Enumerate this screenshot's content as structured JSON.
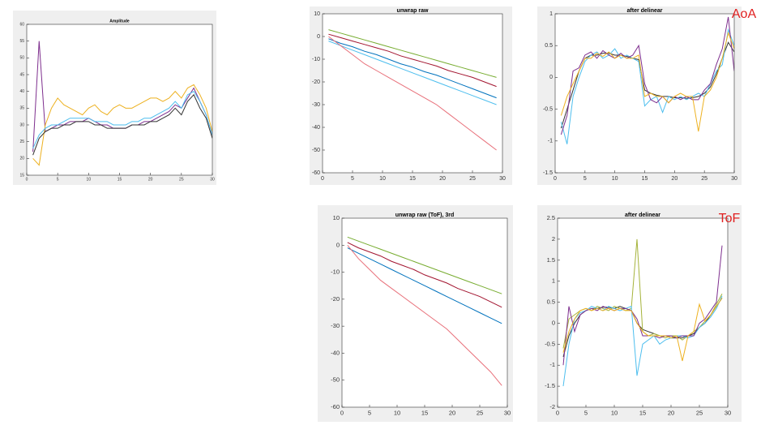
{
  "chart_data": [
    {
      "type": "line",
      "title": "Amplitude",
      "x": [
        1,
        2,
        3,
        4,
        5,
        6,
        7,
        8,
        9,
        10,
        11,
        12,
        13,
        14,
        15,
        16,
        17,
        18,
        19,
        20,
        21,
        22,
        23,
        24,
        25,
        26,
        27,
        28,
        29,
        30
      ],
      "series": [
        {
          "color": "#7e2f8e",
          "values": [
            22,
            55,
            28,
            29,
            30,
            30,
            31,
            31,
            31,
            32,
            31,
            30,
            30,
            29,
            29,
            29,
            30,
            30,
            31,
            31,
            32,
            33,
            34,
            36,
            35,
            38,
            41,
            37,
            33,
            27
          ]
        },
        {
          "color": "#edb120",
          "values": [
            20,
            18,
            30,
            35,
            38,
            36,
            35,
            34,
            33,
            35,
            36,
            34,
            33,
            35,
            36,
            35,
            35,
            36,
            37,
            38,
            38,
            37,
            38,
            40,
            38,
            41,
            42,
            39,
            35,
            28
          ]
        },
        {
          "color": "#333333",
          "values": [
            21,
            26,
            28,
            29,
            29,
            30,
            30,
            31,
            31,
            31,
            30,
            30,
            29,
            29,
            29,
            29,
            30,
            30,
            30,
            31,
            31,
            32,
            33,
            35,
            33,
            37,
            39,
            35,
            32,
            26
          ]
        },
        {
          "color": "#4dbeee",
          "values": [
            23,
            27,
            29,
            30,
            30,
            31,
            32,
            32,
            32,
            32,
            31,
            31,
            31,
            30,
            30,
            30,
            31,
            31,
            32,
            32,
            33,
            34,
            35,
            37,
            35,
            39,
            40,
            37,
            33,
            27
          ]
        }
      ],
      "xlim": [
        0,
        30
      ],
      "xticks": [
        0,
        5,
        10,
        15,
        20,
        25,
        30
      ],
      "ylim": [
        15,
        60
      ],
      "yticks": [
        15,
        20,
        25,
        30,
        35,
        40,
        45,
        50,
        55,
        60
      ]
    },
    {
      "type": "line",
      "title": "unwrap raw",
      "x": [
        1,
        3,
        5,
        7,
        9,
        11,
        13,
        15,
        17,
        19,
        21,
        23,
        25,
        27,
        29
      ],
      "series": [
        {
          "color": "#77ac30",
          "values": [
            3,
            1.5,
            0,
            -1.5,
            -3,
            -4.5,
            -6,
            -7.5,
            -9,
            -10.5,
            -12,
            -13.5,
            -15,
            -16.5,
            -18
          ]
        },
        {
          "color": "#a2142f",
          "values": [
            1,
            -0.5,
            -2,
            -3.5,
            -5,
            -6.5,
            -8.5,
            -10,
            -11.5,
            -13,
            -15,
            -16.5,
            -18,
            -20,
            -22
          ]
        },
        {
          "color": "#0072bd",
          "values": [
            -1,
            -3,
            -4.5,
            -6.5,
            -8,
            -10,
            -12,
            -13.5,
            -15.5,
            -17,
            -19,
            -21,
            -23,
            -25,
            -27
          ]
        },
        {
          "color": "#4dbeee",
          "values": [
            -2,
            -4,
            -6,
            -8,
            -10,
            -12,
            -14,
            -16,
            -18,
            -20,
            -22,
            -24,
            -26,
            -28,
            -30
          ]
        },
        {
          "color": "#e8707a",
          "values": [
            0,
            -4,
            -8,
            -12,
            -15,
            -18,
            -21,
            -24,
            -27,
            -30,
            -34,
            -38,
            -42,
            -46,
            -50
          ]
        }
      ],
      "xlim": [
        0,
        30
      ],
      "xticks": [
        0,
        5,
        10,
        15,
        20,
        25,
        30
      ],
      "ylim": [
        -60,
        10
      ],
      "yticks": [
        -60,
        -50,
        -40,
        -30,
        -20,
        -10,
        0,
        10
      ]
    },
    {
      "type": "line",
      "title": "after delinear",
      "annotation": "AoA",
      "x": [
        1,
        2,
        3,
        4,
        5,
        6,
        7,
        8,
        9,
        10,
        11,
        12,
        13,
        14,
        15,
        16,
        17,
        18,
        19,
        20,
        21,
        22,
        23,
        24,
        25,
        26,
        27,
        28,
        29,
        30
      ],
      "series": [
        {
          "color": "#333333",
          "values": [
            -0.8,
            -0.5,
            -0.2,
            0.1,
            0.3,
            0.35,
            0.35,
            0.38,
            0.38,
            0.35,
            0.35,
            0.33,
            0.3,
            0.28,
            -0.2,
            -0.25,
            -0.28,
            -0.3,
            -0.3,
            -0.32,
            -0.32,
            -0.33,
            -0.32,
            -0.3,
            -0.25,
            -0.15,
            0.05,
            0.3,
            0.55,
            0.4
          ]
        },
        {
          "color": "#4dbeee",
          "values": [
            -0.7,
            -1.05,
            -0.3,
            0.0,
            0.25,
            0.35,
            0.4,
            0.3,
            0.35,
            0.45,
            0.3,
            0.35,
            0.3,
            0.25,
            -0.45,
            -0.35,
            -0.3,
            -0.55,
            -0.3,
            -0.35,
            -0.3,
            -0.35,
            -0.3,
            -0.25,
            -0.3,
            -0.1,
            0.1,
            0.2,
            0.75,
            0.5
          ]
        },
        {
          "color": "#7e2f8e",
          "values": [
            -0.9,
            -0.6,
            0.1,
            0.15,
            0.35,
            0.4,
            0.3,
            0.42,
            0.35,
            0.3,
            0.38,
            0.3,
            0.35,
            0.5,
            -0.1,
            -0.35,
            -0.4,
            -0.3,
            -0.4,
            -0.3,
            -0.35,
            -0.3,
            -0.35,
            -0.35,
            -0.2,
            -0.1,
            0.2,
            0.45,
            0.95,
            0.1
          ]
        },
        {
          "color": "#edb120",
          "values": [
            -0.6,
            -0.3,
            -0.1,
            0.1,
            0.3,
            0.3,
            0.38,
            0.33,
            0.4,
            0.3,
            0.35,
            0.3,
            0.3,
            0.35,
            -0.3,
            -0.25,
            -0.3,
            -0.3,
            -0.4,
            -0.3,
            -0.25,
            -0.3,
            -0.3,
            -0.85,
            -0.3,
            -0.2,
            0.0,
            0.3,
            0.7,
            0.45
          ]
        }
      ],
      "xlim": [
        0,
        30
      ],
      "xticks": [
        0,
        5,
        10,
        15,
        20,
        25,
        30
      ],
      "ylim": [
        -1.5,
        1
      ],
      "yticks": [
        -1.5,
        -1,
        -0.5,
        0,
        0.5,
        1
      ]
    },
    {
      "type": "line",
      "title": "unwrap raw (ToF), 3rd",
      "x": [
        1,
        3,
        5,
        7,
        9,
        11,
        13,
        15,
        17,
        19,
        21,
        23,
        25,
        27,
        29
      ],
      "series": [
        {
          "color": "#77ac30",
          "values": [
            3,
            1.5,
            0,
            -1.5,
            -3,
            -4.5,
            -6,
            -7.5,
            -9,
            -10.5,
            -12,
            -13.5,
            -15,
            -16.5,
            -18
          ]
        },
        {
          "color": "#a2142f",
          "values": [
            1,
            -1,
            -2.5,
            -4,
            -6,
            -7.5,
            -9,
            -11,
            -12.5,
            -14,
            -16,
            -17.5,
            -19,
            -21,
            -23
          ]
        },
        {
          "color": "#0072bd",
          "values": [
            -1,
            -3,
            -5,
            -7,
            -9,
            -11,
            -13,
            -15,
            -17,
            -19,
            -21,
            -23,
            -25,
            -27,
            -29
          ]
        },
        {
          "color": "#e8707a",
          "values": [
            0,
            -5,
            -9,
            -13,
            -16,
            -19,
            -22,
            -25,
            -28,
            -31,
            -35,
            -39,
            -43,
            -47,
            -52
          ]
        }
      ],
      "xlim": [
        0,
        30
      ],
      "xticks": [
        0,
        5,
        10,
        15,
        20,
        25,
        30
      ],
      "ylim": [
        -60,
        10
      ],
      "yticks": [
        -60,
        -50,
        -40,
        -30,
        -20,
        -10,
        0,
        10
      ]
    },
    {
      "type": "line",
      "title": "after delinear",
      "annotation": "ToF",
      "x": [
        1,
        2,
        3,
        4,
        5,
        6,
        7,
        8,
        9,
        10,
        11,
        12,
        13,
        14,
        15,
        16,
        17,
        18,
        19,
        20,
        21,
        22,
        23,
        24,
        25,
        26,
        27,
        28,
        29
      ],
      "series": [
        {
          "color": "#333333",
          "values": [
            -0.8,
            -0.3,
            0.0,
            0.2,
            0.3,
            0.35,
            0.35,
            0.38,
            0.38,
            0.35,
            0.4,
            0.35,
            0.3,
            0.0,
            -0.15,
            -0.2,
            -0.25,
            -0.3,
            -0.3,
            -0.35,
            -0.35,
            -0.35,
            -0.3,
            -0.25,
            -0.1,
            0.0,
            0.2,
            0.4,
            0.6
          ]
        },
        {
          "color": "#a5b33a",
          "values": [
            -0.6,
            0.1,
            0.2,
            0.3,
            0.35,
            0.3,
            0.4,
            0.35,
            0.3,
            0.4,
            0.35,
            0.3,
            0.35,
            2.0,
            -0.2,
            -0.3,
            -0.25,
            -0.3,
            -0.35,
            -0.3,
            -0.3,
            -0.4,
            -0.3,
            -0.2,
            -0.1,
            0.05,
            0.2,
            0.45,
            0.7
          ]
        },
        {
          "color": "#4dbeee",
          "values": [
            -1.5,
            -0.5,
            0.1,
            0.25,
            0.3,
            0.4,
            0.35,
            0.3,
            0.4,
            0.35,
            0.3,
            0.35,
            0.4,
            -1.25,
            -0.5,
            -0.4,
            -0.3,
            -0.5,
            -0.4,
            -0.35,
            -0.3,
            -0.3,
            -0.35,
            -0.3,
            -0.1,
            0.0,
            0.15,
            0.35,
            0.65
          ]
        },
        {
          "color": "#7e2f8e",
          "values": [
            -1.0,
            0.4,
            -0.2,
            0.2,
            0.3,
            0.35,
            0.3,
            0.4,
            0.35,
            0.3,
            0.35,
            0.35,
            0.3,
            0.1,
            -0.3,
            -0.3,
            -0.3,
            -0.35,
            -0.3,
            -0.3,
            -0.35,
            -0.3,
            -0.3,
            -0.3,
            0.0,
            0.1,
            0.3,
            0.5,
            1.85
          ]
        },
        {
          "color": "#edb120",
          "values": [
            -0.7,
            -0.2,
            0.1,
            0.3,
            0.35,
            0.3,
            0.35,
            0.3,
            0.35,
            0.3,
            0.35,
            0.3,
            0.3,
            0.0,
            -0.2,
            -0.3,
            -0.3,
            -0.3,
            -0.3,
            -0.35,
            -0.3,
            -0.9,
            -0.3,
            -0.2,
            0.45,
            0.05,
            0.2,
            0.4,
            0.6
          ]
        }
      ],
      "xlim": [
        0,
        30
      ],
      "xticks": [
        0,
        5,
        10,
        15,
        20,
        25,
        30
      ],
      "ylim": [
        -2,
        2.5
      ],
      "yticks": [
        -2,
        -1.5,
        -1,
        -0.5,
        0,
        0.5,
        1,
        1.5,
        2,
        2.5
      ]
    }
  ]
}
